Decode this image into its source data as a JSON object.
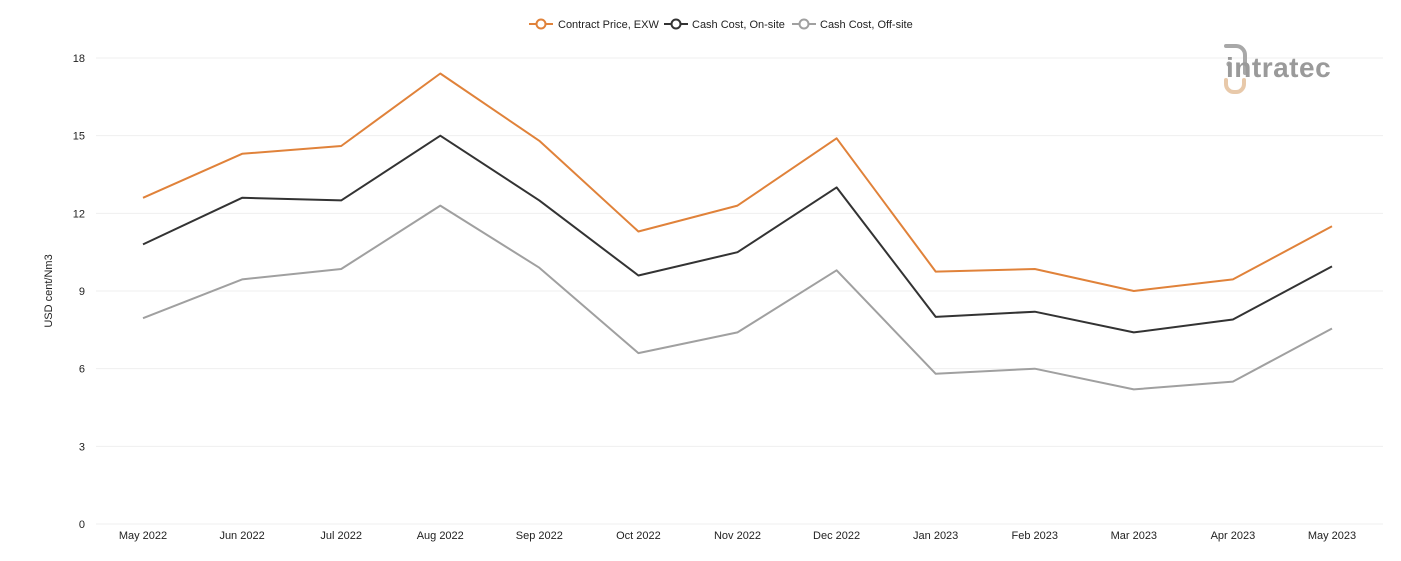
{
  "chart_data": {
    "type": "line",
    "categories": [
      "May 2022",
      "Jun 2022",
      "Jul 2022",
      "Aug 2022",
      "Sep 2022",
      "Oct 2022",
      "Nov 2022",
      "Dec 2022",
      "Jan 2023",
      "Feb 2023",
      "Mar 2023",
      "Apr 2023",
      "May 2023"
    ],
    "series": [
      {
        "name": "Contract Price, EXW",
        "color": "#e0823a",
        "values": [
          12.6,
          14.3,
          14.6,
          17.4,
          14.8,
          11.3,
          12.3,
          14.9,
          9.75,
          9.85,
          9.0,
          9.45,
          11.5
        ]
      },
      {
        "name": "Cash Cost, On-site",
        "color": "#333333",
        "values": [
          10.8,
          12.6,
          12.5,
          15.0,
          12.5,
          9.6,
          10.5,
          13.0,
          8.0,
          8.2,
          7.4,
          7.9,
          9.95
        ]
      },
      {
        "name": "Cash Cost, Off-site",
        "color": "#a0a0a0",
        "values": [
          7.95,
          9.45,
          9.85,
          12.3,
          9.9,
          6.6,
          7.4,
          9.8,
          5.8,
          6.0,
          5.2,
          5.5,
          7.55
        ]
      }
    ],
    "title": "",
    "xlabel": "",
    "ylabel": "USD cent/Nm3",
    "ylim": [
      0,
      18
    ],
    "yticks": [
      0,
      3,
      6,
      9,
      12,
      15,
      18
    ],
    "grid": true,
    "legend_position": "top-center"
  },
  "logo": {
    "text": "intratec",
    "icon": "intratec-logo-icon"
  }
}
